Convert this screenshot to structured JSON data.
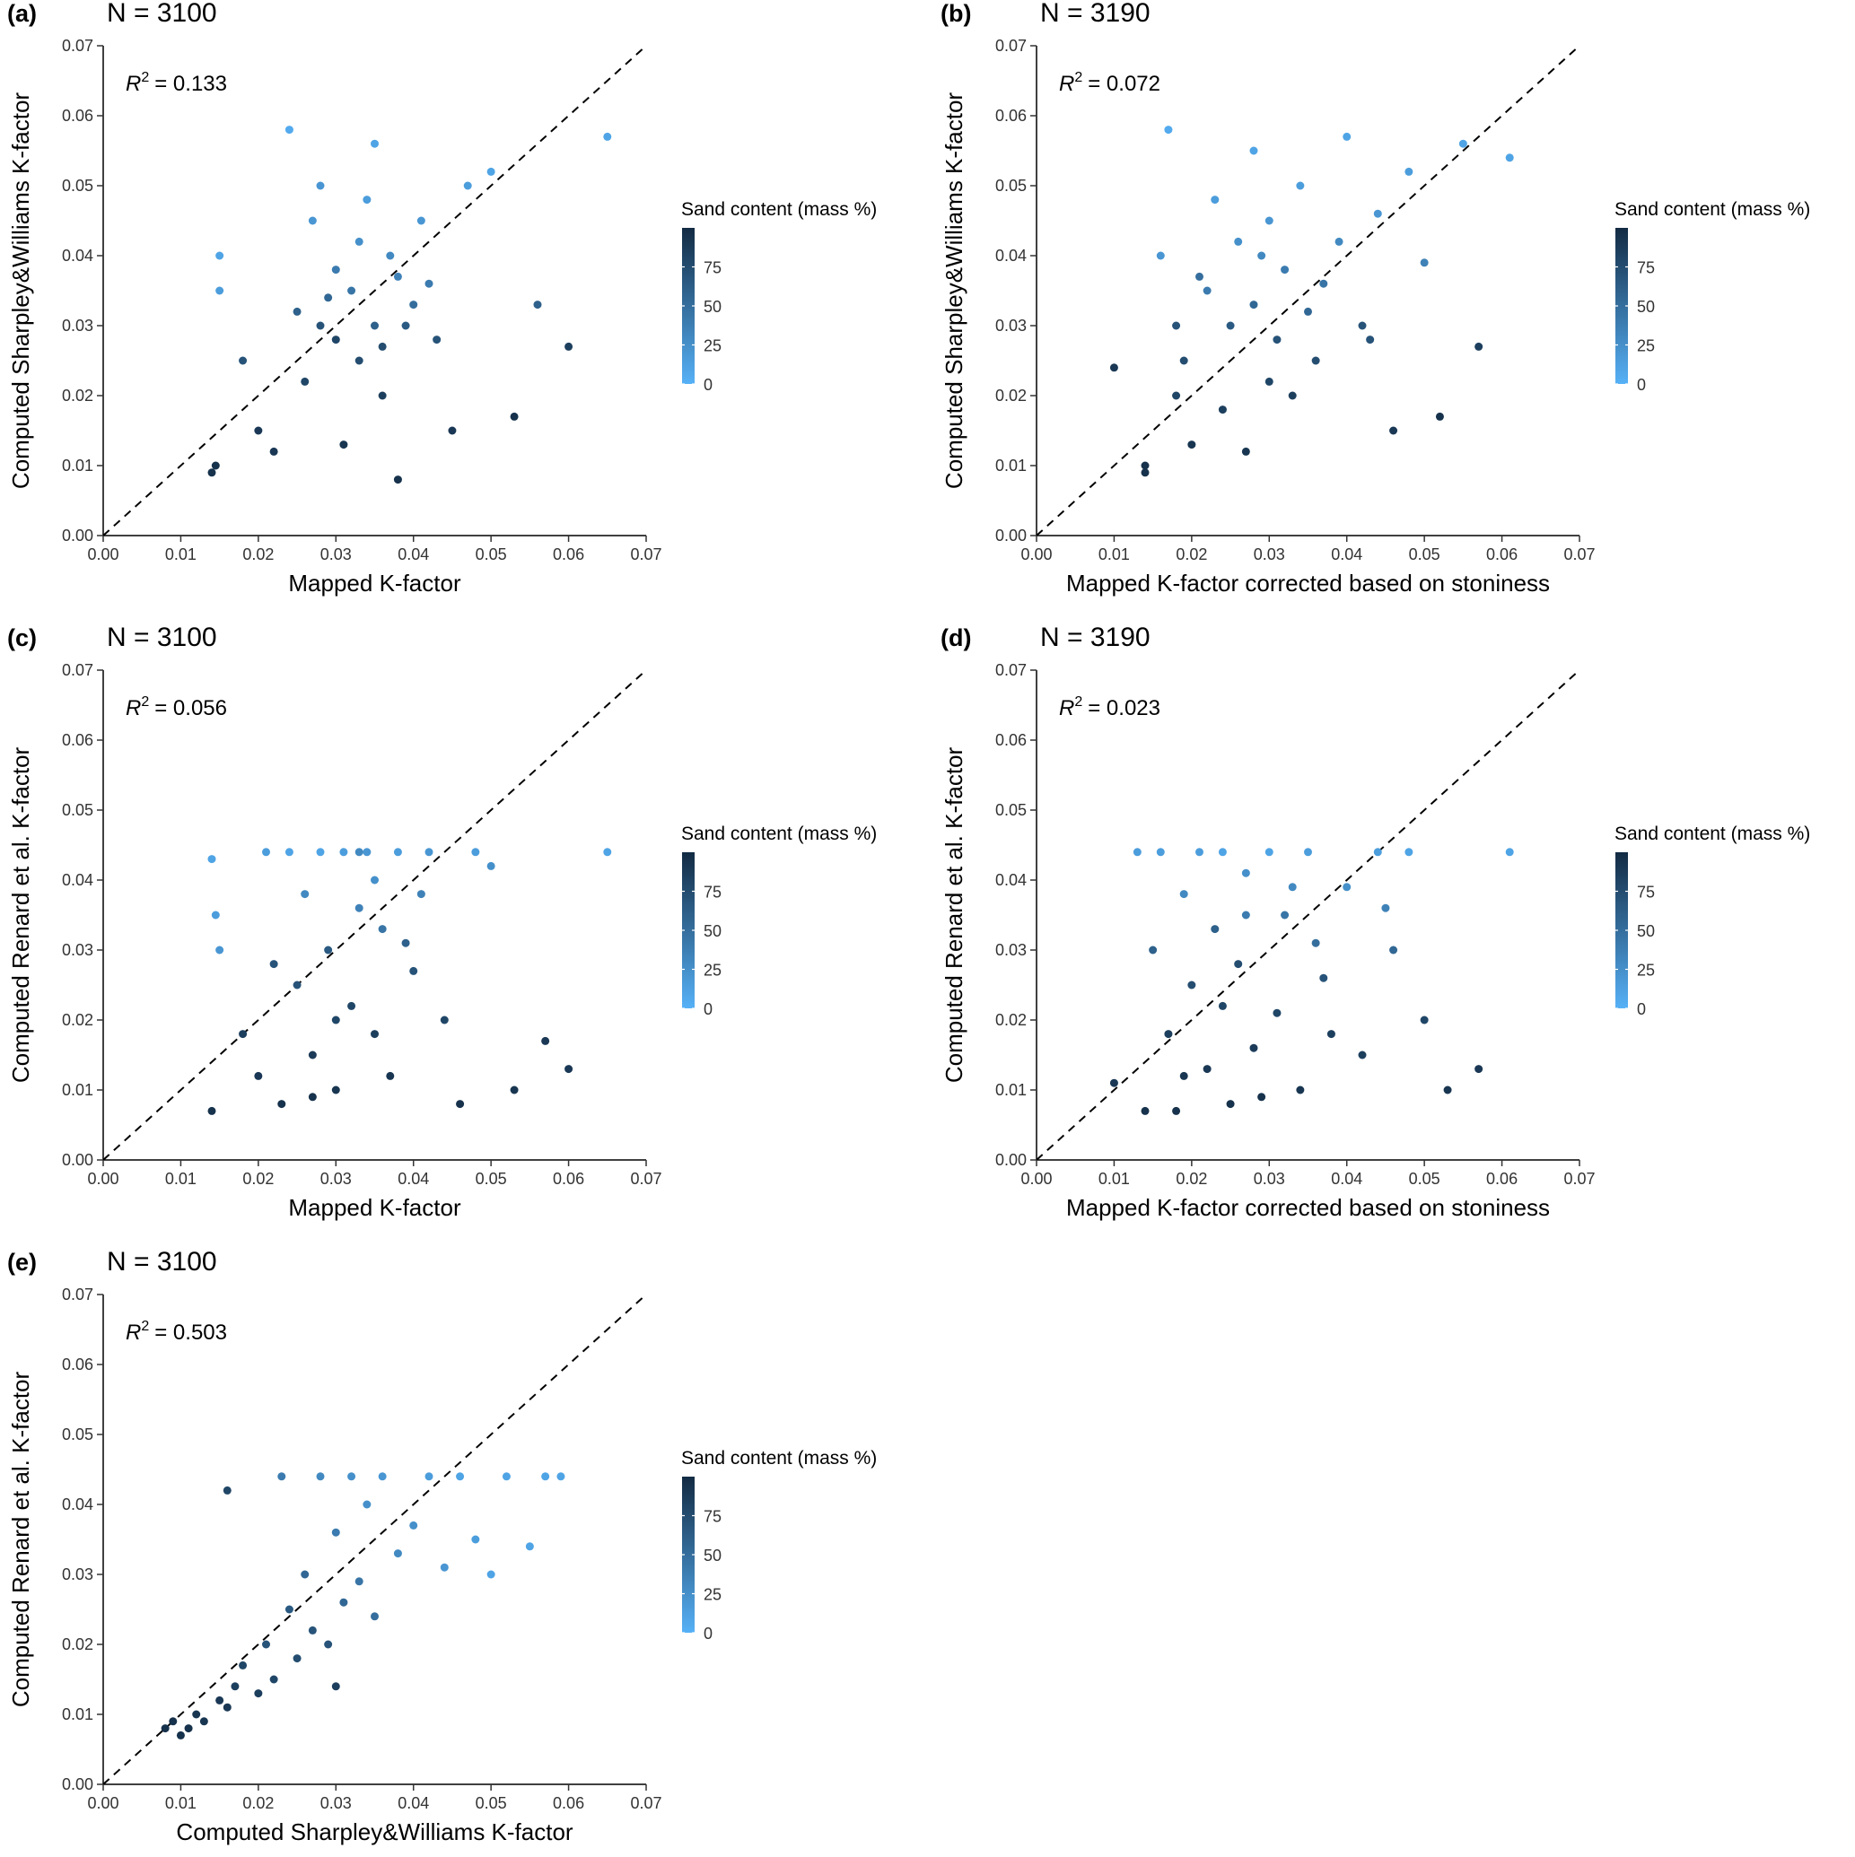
{
  "chart_data": [
    {
      "type": "scatter",
      "panel_label": "(a)",
      "title": "N = 3100",
      "r2": {
        "symbol": "R",
        "exponent": "2",
        "text": "= 0.133"
      },
      "x_label": "Mapped K-factor",
      "y_label": "Computed Sharpley&Williams K-factor",
      "xlim": [
        0,
        0.07
      ],
      "ylim": [
        0,
        0.07
      ],
      "xticks": [
        {
          "value": 0,
          "label": "0.00"
        },
        {
          "value": 0.01,
          "label": "0.01"
        },
        {
          "value": 0.02,
          "label": "0.02"
        },
        {
          "value": 0.03,
          "label": "0.03"
        },
        {
          "value": 0.04,
          "label": "0.04"
        },
        {
          "value": 0.05,
          "label": "0.05"
        },
        {
          "value": 0.06,
          "label": "0.06"
        },
        {
          "value": 0.07,
          "label": "0.07"
        }
      ],
      "yticks": [
        {
          "value": 0,
          "label": "0.00"
        },
        {
          "value": 0.01,
          "label": "0.01"
        },
        {
          "value": 0.02,
          "label": "0.02"
        },
        {
          "value": 0.03,
          "label": "0.03"
        },
        {
          "value": 0.04,
          "label": "0.04"
        },
        {
          "value": 0.05,
          "label": "0.05"
        },
        {
          "value": 0.06,
          "label": "0.06"
        },
        {
          "value": 0.07,
          "label": "0.07"
        }
      ],
      "colorbar": {
        "title": "Sand content (mass %)",
        "lim": [
          0,
          100
        ],
        "ticks": [
          0,
          25,
          50,
          75
        ],
        "colors": [
          "#56b1f7",
          "#132b43"
        ]
      },
      "x": [
        0.014,
        0.0145,
        0.015,
        0.015,
        0.018,
        0.02,
        0.022,
        0.025,
        0.024,
        0.027,
        0.028,
        0.03,
        0.03,
        0.032,
        0.033,
        0.034,
        0.035,
        0.035,
        0.036,
        0.037,
        0.038,
        0.04,
        0.041,
        0.043,
        0.045,
        0.047,
        0.05,
        0.053,
        0.056,
        0.06,
        0.065,
        0.031,
        0.028,
        0.026,
        0.038,
        0.042,
        0.029,
        0.033,
        0.036,
        0.039
      ],
      "values": [
        0.009,
        0.01,
        0.04,
        0.035,
        0.025,
        0.015,
        0.012,
        0.032,
        0.058,
        0.045,
        0.03,
        0.028,
        0.038,
        0.035,
        0.025,
        0.048,
        0.056,
        0.03,
        0.02,
        0.04,
        0.008,
        0.033,
        0.045,
        0.028,
        0.015,
        0.05,
        0.052,
        0.017,
        0.033,
        0.027,
        0.057,
        0.013,
        0.05,
        0.022,
        0.037,
        0.036,
        0.034,
        0.042,
        0.027,
        0.03
      ],
      "sand": [
        95,
        95,
        10,
        15,
        70,
        90,
        90,
        60,
        5,
        20,
        70,
        80,
        40,
        45,
        75,
        15,
        10,
        60,
        85,
        30,
        95,
        50,
        20,
        70,
        90,
        15,
        10,
        95,
        60,
        85,
        10,
        92,
        20,
        80,
        35,
        40,
        55,
        25,
        75,
        65
      ]
    },
    {
      "type": "scatter",
      "panel_label": "(b)",
      "title": "N = 3190",
      "r2": {
        "symbol": "R",
        "exponent": "2",
        "text": "= 0.072"
      },
      "x_label": "Mapped K-factor corrected based on stoniness",
      "y_label": "Computed Sharpley&Williams K-factor",
      "xlim": [
        0,
        0.07
      ],
      "ylim": [
        0,
        0.07
      ],
      "xticks": [
        {
          "value": 0,
          "label": "0.00"
        },
        {
          "value": 0.01,
          "label": "0.01"
        },
        {
          "value": 0.02,
          "label": "0.02"
        },
        {
          "value": 0.03,
          "label": "0.03"
        },
        {
          "value": 0.04,
          "label": "0.04"
        },
        {
          "value": 0.05,
          "label": "0.05"
        },
        {
          "value": 0.06,
          "label": "0.06"
        },
        {
          "value": 0.07,
          "label": "0.07"
        }
      ],
      "yticks": [
        {
          "value": 0,
          "label": "0.00"
        },
        {
          "value": 0.01,
          "label": "0.01"
        },
        {
          "value": 0.02,
          "label": "0.02"
        },
        {
          "value": 0.03,
          "label": "0.03"
        },
        {
          "value": 0.04,
          "label": "0.04"
        },
        {
          "value": 0.05,
          "label": "0.05"
        },
        {
          "value": 0.06,
          "label": "0.06"
        },
        {
          "value": 0.07,
          "label": "0.07"
        }
      ],
      "colorbar": {
        "title": "Sand content (mass %)",
        "lim": [
          0,
          100
        ],
        "ticks": [
          0,
          25,
          50,
          75
        ],
        "colors": [
          "#56b1f7",
          "#132b43"
        ]
      },
      "x": [
        0.01,
        0.014,
        0.014,
        0.016,
        0.017,
        0.018,
        0.019,
        0.02,
        0.022,
        0.023,
        0.024,
        0.025,
        0.026,
        0.027,
        0.028,
        0.028,
        0.03,
        0.031,
        0.032,
        0.033,
        0.034,
        0.035,
        0.037,
        0.04,
        0.042,
        0.044,
        0.046,
        0.048,
        0.05,
        0.052,
        0.055,
        0.057,
        0.061,
        0.018,
        0.036,
        0.039,
        0.029,
        0.021,
        0.043,
        0.03
      ],
      "values": [
        0.024,
        0.009,
        0.01,
        0.04,
        0.058,
        0.03,
        0.025,
        0.013,
        0.035,
        0.048,
        0.018,
        0.03,
        0.042,
        0.012,
        0.055,
        0.033,
        0.045,
        0.028,
        0.038,
        0.02,
        0.05,
        0.032,
        0.036,
        0.057,
        0.03,
        0.046,
        0.015,
        0.052,
        0.039,
        0.017,
        0.056,
        0.027,
        0.054,
        0.02,
        0.025,
        0.042,
        0.04,
        0.037,
        0.028,
        0.022
      ],
      "sand": [
        90,
        95,
        95,
        20,
        5,
        70,
        75,
        92,
        40,
        15,
        85,
        65,
        25,
        92,
        10,
        55,
        20,
        70,
        40,
        85,
        15,
        55,
        45,
        10,
        70,
        20,
        90,
        15,
        35,
        95,
        10,
        85,
        10,
        80,
        75,
        30,
        30,
        50,
        70,
        80
      ]
    },
    {
      "type": "scatter",
      "panel_label": "(c)",
      "title": "N = 3100",
      "r2": {
        "symbol": "R",
        "exponent": "2",
        "text": "= 0.056"
      },
      "x_label": "Mapped K-factor",
      "y_label": "Computed Renard et al. K-factor",
      "xlim": [
        0,
        0.07
      ],
      "ylim": [
        0,
        0.07
      ],
      "xticks": [
        {
          "value": 0,
          "label": "0.00"
        },
        {
          "value": 0.01,
          "label": "0.01"
        },
        {
          "value": 0.02,
          "label": "0.02"
        },
        {
          "value": 0.03,
          "label": "0.03"
        },
        {
          "value": 0.04,
          "label": "0.04"
        },
        {
          "value": 0.05,
          "label": "0.05"
        },
        {
          "value": 0.06,
          "label": "0.06"
        },
        {
          "value": 0.07,
          "label": "0.07"
        }
      ],
      "yticks": [
        {
          "value": 0,
          "label": "0.00"
        },
        {
          "value": 0.01,
          "label": "0.01"
        },
        {
          "value": 0.02,
          "label": "0.02"
        },
        {
          "value": 0.03,
          "label": "0.03"
        },
        {
          "value": 0.04,
          "label": "0.04"
        },
        {
          "value": 0.05,
          "label": "0.05"
        },
        {
          "value": 0.06,
          "label": "0.06"
        },
        {
          "value": 0.07,
          "label": "0.07"
        }
      ],
      "colorbar": {
        "title": "Sand content (mass %)",
        "lim": [
          0,
          100
        ],
        "ticks": [
          0,
          25,
          50,
          75
        ],
        "colors": [
          "#56b1f7",
          "#132b43"
        ]
      },
      "x": [
        0.014,
        0.014,
        0.0145,
        0.015,
        0.018,
        0.02,
        0.021,
        0.023,
        0.024,
        0.025,
        0.026,
        0.027,
        0.028,
        0.029,
        0.03,
        0.031,
        0.032,
        0.033,
        0.034,
        0.035,
        0.036,
        0.037,
        0.038,
        0.04,
        0.042,
        0.044,
        0.046,
        0.048,
        0.05,
        0.053,
        0.057,
        0.06,
        0.065,
        0.03,
        0.035,
        0.039,
        0.027,
        0.033,
        0.041,
        0.022
      ],
      "values": [
        0.007,
        0.043,
        0.035,
        0.03,
        0.018,
        0.012,
        0.044,
        0.008,
        0.044,
        0.025,
        0.038,
        0.015,
        0.044,
        0.03,
        0.01,
        0.044,
        0.022,
        0.036,
        0.044,
        0.018,
        0.033,
        0.012,
        0.044,
        0.027,
        0.044,
        0.02,
        0.008,
        0.044,
        0.042,
        0.01,
        0.017,
        0.013,
        0.044,
        0.02,
        0.04,
        0.031,
        0.009,
        0.044,
        0.038,
        0.028
      ],
      "sand": [
        95,
        10,
        15,
        20,
        85,
        90,
        15,
        95,
        10,
        70,
        30,
        88,
        10,
        65,
        92,
        15,
        80,
        35,
        20,
        85,
        45,
        92,
        15,
        70,
        20,
        80,
        95,
        15,
        25,
        92,
        90,
        90,
        10,
        80,
        25,
        60,
        95,
        30,
        35,
        70
      ]
    },
    {
      "type": "scatter",
      "panel_label": "(d)",
      "title": "N = 3190",
      "r2": {
        "symbol": "R",
        "exponent": "2",
        "text": "= 0.023"
      },
      "x_label": "Mapped K-factor corrected based on stoniness",
      "y_label": "Computed Renard et al. K-factor",
      "xlim": [
        0,
        0.07
      ],
      "ylim": [
        0,
        0.07
      ],
      "xticks": [
        {
          "value": 0,
          "label": "0.00"
        },
        {
          "value": 0.01,
          "label": "0.01"
        },
        {
          "value": 0.02,
          "label": "0.02"
        },
        {
          "value": 0.03,
          "label": "0.03"
        },
        {
          "value": 0.04,
          "label": "0.04"
        },
        {
          "value": 0.05,
          "label": "0.05"
        },
        {
          "value": 0.06,
          "label": "0.06"
        },
        {
          "value": 0.07,
          "label": "0.07"
        }
      ],
      "yticks": [
        {
          "value": 0,
          "label": "0.00"
        },
        {
          "value": 0.01,
          "label": "0.01"
        },
        {
          "value": 0.02,
          "label": "0.02"
        },
        {
          "value": 0.03,
          "label": "0.03"
        },
        {
          "value": 0.04,
          "label": "0.04"
        },
        {
          "value": 0.05,
          "label": "0.05"
        },
        {
          "value": 0.06,
          "label": "0.06"
        },
        {
          "value": 0.07,
          "label": "0.07"
        }
      ],
      "colorbar": {
        "title": "Sand content (mass %)",
        "lim": [
          0,
          100
        ],
        "ticks": [
          0,
          25,
          50,
          75
        ],
        "colors": [
          "#56b1f7",
          "#132b43"
        ]
      },
      "x": [
        0.01,
        0.013,
        0.014,
        0.015,
        0.016,
        0.017,
        0.018,
        0.019,
        0.02,
        0.021,
        0.022,
        0.023,
        0.024,
        0.025,
        0.026,
        0.027,
        0.028,
        0.03,
        0.031,
        0.032,
        0.034,
        0.035,
        0.037,
        0.04,
        0.042,
        0.044,
        0.046,
        0.048,
        0.05,
        0.053,
        0.057,
        0.061,
        0.029,
        0.033,
        0.038,
        0.024,
        0.045,
        0.036,
        0.019,
        0.027
      ],
      "values": [
        0.011,
        0.044,
        0.007,
        0.03,
        0.044,
        0.018,
        0.007,
        0.038,
        0.025,
        0.044,
        0.013,
        0.033,
        0.044,
        0.008,
        0.028,
        0.041,
        0.016,
        0.044,
        0.021,
        0.035,
        0.01,
        0.044,
        0.026,
        0.039,
        0.015,
        0.044,
        0.03,
        0.044,
        0.02,
        0.01,
        0.013,
        0.044,
        0.009,
        0.039,
        0.018,
        0.022,
        0.036,
        0.031,
        0.012,
        0.035
      ],
      "sand": [
        90,
        15,
        95,
        60,
        15,
        85,
        95,
        30,
        75,
        15,
        90,
        60,
        10,
        95,
        75,
        25,
        88,
        10,
        80,
        45,
        92,
        15,
        70,
        25,
        85,
        15,
        55,
        10,
        80,
        92,
        90,
        10,
        95,
        30,
        85,
        80,
        35,
        50,
        92,
        40
      ]
    },
    {
      "type": "scatter",
      "panel_label": "(e)",
      "title": "N = 3100",
      "r2": {
        "symbol": "R",
        "exponent": "2",
        "text": "= 0.503"
      },
      "x_label": "Computed Sharpley&Williams K-factor",
      "y_label": "Computed Renard et al. K-factor",
      "xlim": [
        0,
        0.07
      ],
      "ylim": [
        0,
        0.07
      ],
      "xticks": [
        {
          "value": 0,
          "label": "0.00"
        },
        {
          "value": 0.01,
          "label": "0.01"
        },
        {
          "value": 0.02,
          "label": "0.02"
        },
        {
          "value": 0.03,
          "label": "0.03"
        },
        {
          "value": 0.04,
          "label": "0.04"
        },
        {
          "value": 0.05,
          "label": "0.05"
        },
        {
          "value": 0.06,
          "label": "0.06"
        },
        {
          "value": 0.07,
          "label": "0.07"
        }
      ],
      "yticks": [
        {
          "value": 0,
          "label": "0.00"
        },
        {
          "value": 0.01,
          "label": "0.01"
        },
        {
          "value": 0.02,
          "label": "0.02"
        },
        {
          "value": 0.03,
          "label": "0.03"
        },
        {
          "value": 0.04,
          "label": "0.04"
        },
        {
          "value": 0.05,
          "label": "0.05"
        },
        {
          "value": 0.06,
          "label": "0.06"
        },
        {
          "value": 0.07,
          "label": "0.07"
        }
      ],
      "colorbar": {
        "title": "Sand content (mass %)",
        "lim": [
          0,
          100
        ],
        "ticks": [
          0,
          25,
          50,
          75
        ],
        "colors": [
          "#56b1f7",
          "#132b43"
        ]
      },
      "x": [
        0.008,
        0.009,
        0.01,
        0.011,
        0.012,
        0.013,
        0.015,
        0.016,
        0.017,
        0.018,
        0.02,
        0.021,
        0.022,
        0.023,
        0.024,
        0.025,
        0.026,
        0.027,
        0.028,
        0.029,
        0.03,
        0.031,
        0.032,
        0.033,
        0.034,
        0.035,
        0.036,
        0.038,
        0.04,
        0.042,
        0.044,
        0.046,
        0.048,
        0.05,
        0.052,
        0.055,
        0.057,
        0.059,
        0.016,
        0.03
      ],
      "values": [
        0.008,
        0.009,
        0.007,
        0.008,
        0.01,
        0.009,
        0.012,
        0.011,
        0.014,
        0.017,
        0.013,
        0.02,
        0.015,
        0.044,
        0.025,
        0.018,
        0.03,
        0.022,
        0.044,
        0.02,
        0.036,
        0.026,
        0.044,
        0.029,
        0.04,
        0.024,
        0.044,
        0.033,
        0.037,
        0.044,
        0.031,
        0.044,
        0.035,
        0.03,
        0.044,
        0.034,
        0.044,
        0.044,
        0.042,
        0.014
      ],
      "sand": [
        95,
        95,
        95,
        95,
        92,
        92,
        90,
        90,
        85,
        80,
        85,
        70,
        80,
        40,
        65,
        75,
        55,
        70,
        30,
        70,
        40,
        55,
        25,
        45,
        25,
        50,
        20,
        30,
        25,
        15,
        20,
        10,
        15,
        10,
        10,
        10,
        10,
        10,
        80,
        85
      ]
    }
  ]
}
